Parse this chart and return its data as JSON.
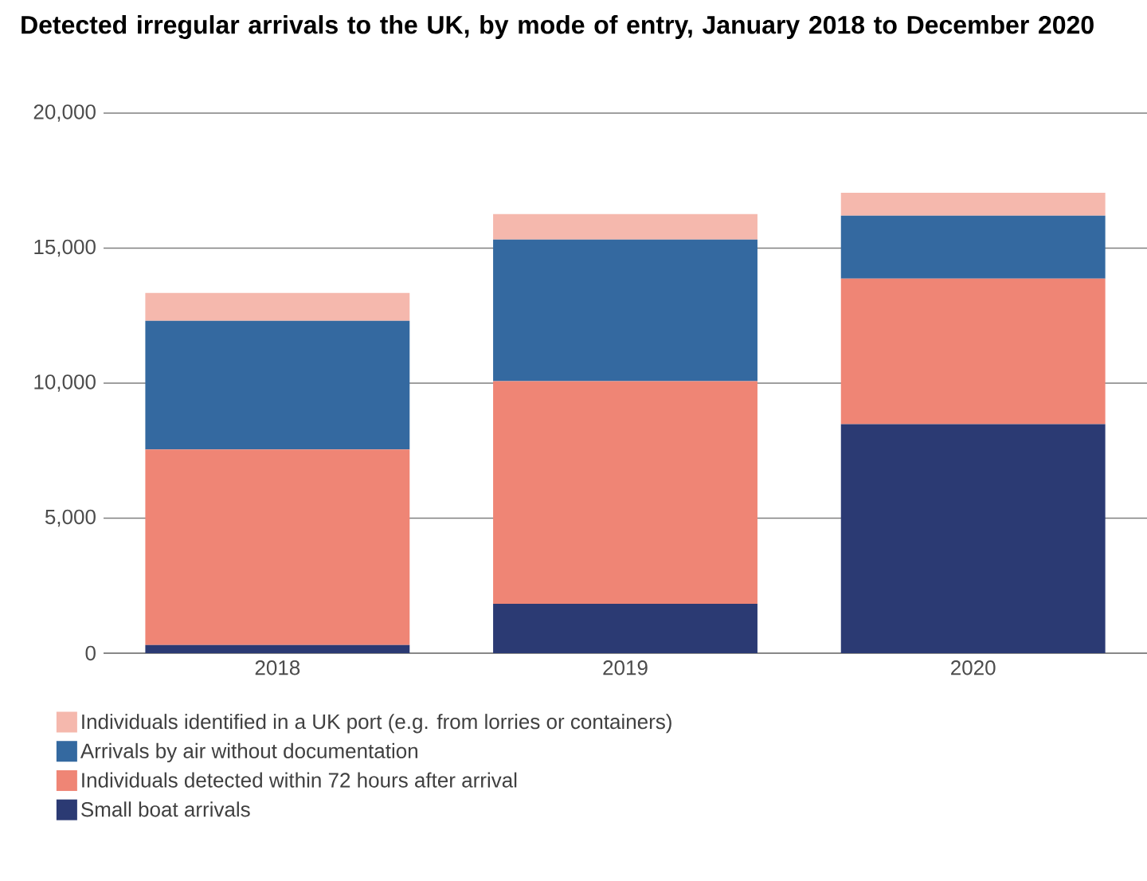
{
  "chart_data": {
    "type": "bar",
    "title": "Detected irregular arrivals to the UK, by mode of entry, January 2018 to December 2020",
    "categories": [
      "2018",
      "2019",
      "2020"
    ],
    "stacked": true,
    "series": [
      {
        "name": "Small boat arrivals",
        "color": "#2b3a73",
        "values": [
          300,
          1830,
          8480
        ]
      },
      {
        "name": "Individuals detected within 72 hours after arrival",
        "color": "#ef8575",
        "values": [
          7240,
          8240,
          5390
        ]
      },
      {
        "name": "Arrivals by air without documentation",
        "color": "#3469a0",
        "values": [
          4770,
          5250,
          2330
        ]
      },
      {
        "name": "Individuals identified in a UK port (e.g. from lorries or containers)",
        "color": "#f5b8ad",
        "values": [
          1030,
          940,
          850
        ]
      }
    ],
    "ylim": [
      0,
      20000
    ],
    "yticks": [
      {
        "value": 0,
        "label": "0"
      },
      {
        "value": 5000,
        "label": "5,000"
      },
      {
        "value": 10000,
        "label": "10,000"
      },
      {
        "value": 15000,
        "label": "15,000"
      },
      {
        "value": 20000,
        "label": "20,000"
      }
    ],
    "grid": "y",
    "legend": "bottom"
  }
}
